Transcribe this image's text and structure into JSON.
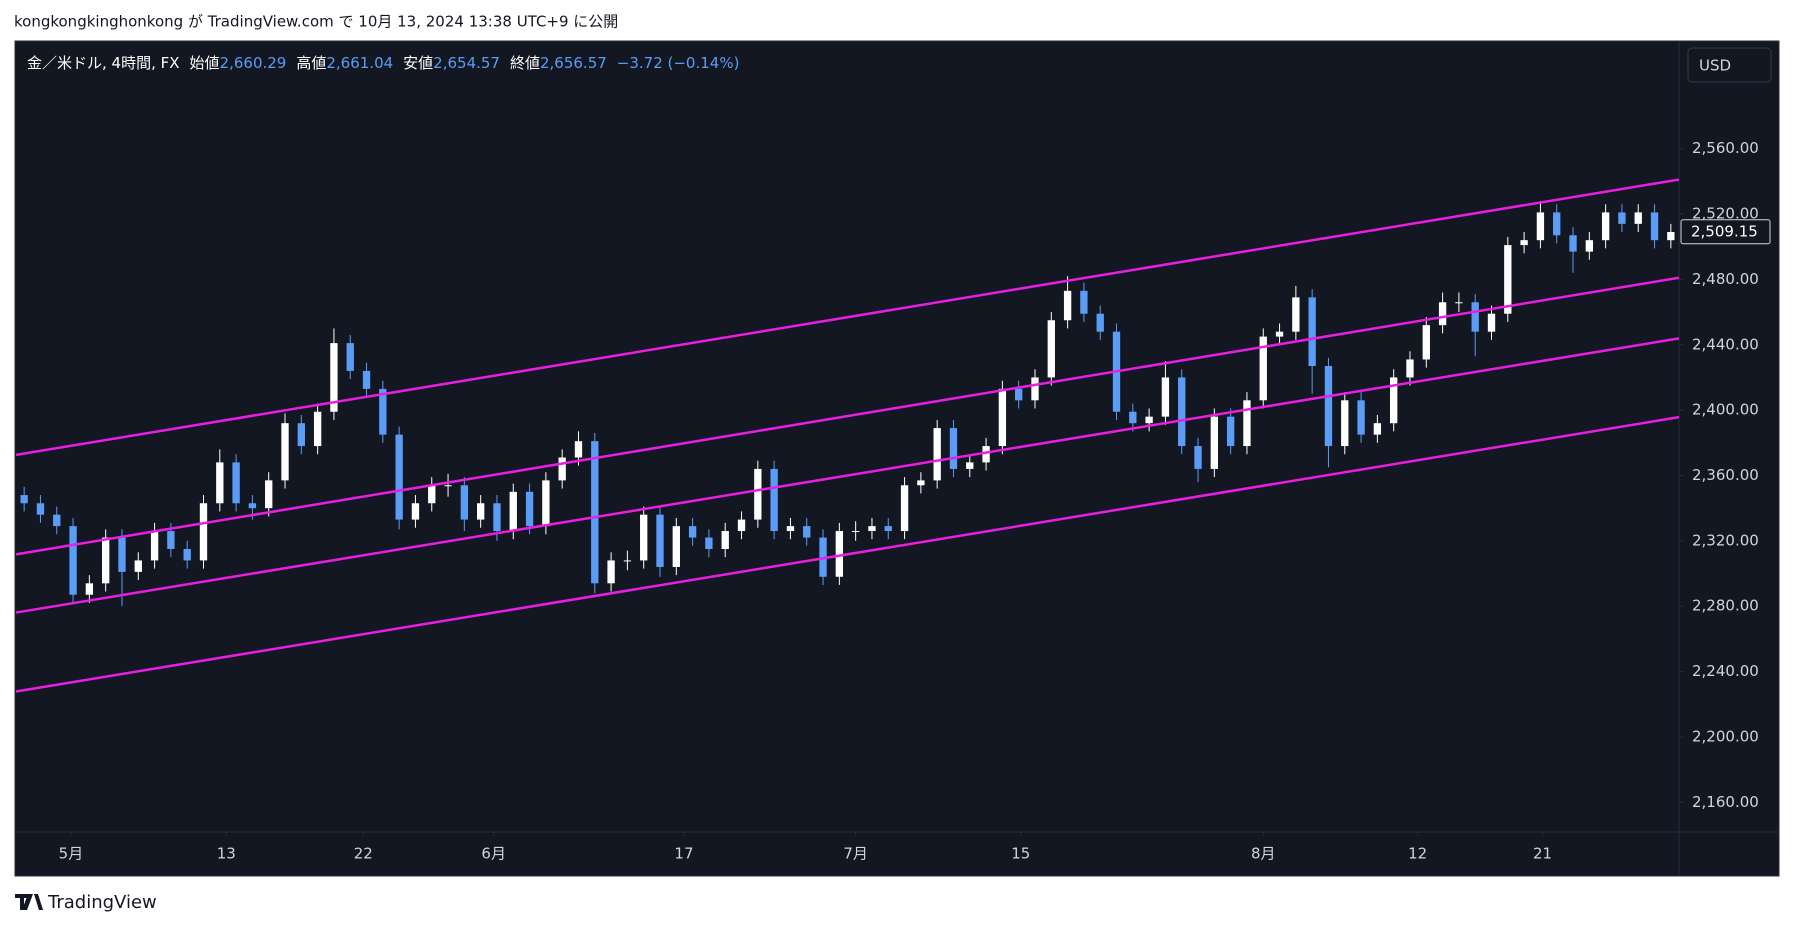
{
  "header": {
    "text": "kongkongkinghonkong が TradingView.com で 10月 13, 2024 13:38 UTC+9 に公開"
  },
  "footer": {
    "logo": "TradingView"
  },
  "chart_data": {
    "type": "candlestick",
    "legend": {
      "symbol": "金／米ドル, 4時間, FX",
      "fields": [
        {
          "label": "始値",
          "value": "2,660.29"
        },
        {
          "label": "高値",
          "value": "2,661.04"
        },
        {
          "label": "安値",
          "value": "2,654.57"
        },
        {
          "label": "終値",
          "value": "2,656.57"
        }
      ],
      "change": "−3.72 (−0.14%)"
    },
    "currency": "USD",
    "open": [
      2348,
      2343,
      2336,
      2329,
      2287,
      2294,
      2322,
      2301,
      2308,
      2326,
      2315,
      2308,
      2343,
      2368,
      2343,
      2340,
      2357,
      2392,
      2378,
      2399,
      2441,
      2424,
      2413,
      2385,
      2333,
      2343,
      2354,
      2354,
      2333,
      2343,
      2326,
      2350,
      2329,
      2357,
      2371,
      2381,
      2294,
      2308,
      2308,
      2336,
      2304,
      2329,
      2322,
      2315,
      2326,
      2333,
      2364,
      2326,
      2329,
      2322,
      2298,
      2326,
      2326,
      2329,
      2326,
      2354,
      2357,
      2389,
      2364,
      2368,
      2378,
      2413,
      2406,
      2420,
      2455,
      2473,
      2459,
      2448,
      2399,
      2392,
      2396,
      2420,
      2378,
      2364,
      2396,
      2378,
      2406,
      2445,
      2448,
      2469,
      2427,
      2378,
      2406,
      2385,
      2392,
      2420,
      2431,
      2452,
      2466,
      2466,
      2448,
      2459,
      2501,
      2504,
      2521,
      2507,
      2497,
      2504,
      2521,
      2514,
      2521,
      2504
    ],
    "high": [
      2353,
      2348,
      2341,
      2334,
      2299,
      2327,
      2327,
      2313,
      2331,
      2331,
      2320,
      2348,
      2376,
      2373,
      2348,
      2362,
      2398,
      2397,
      2404,
      2450,
      2446,
      2429,
      2418,
      2390,
      2348,
      2359,
      2361,
      2359,
      2348,
      2348,
      2355,
      2355,
      2362,
      2376,
      2387,
      2386,
      2313,
      2314,
      2341,
      2341,
      2334,
      2334,
      2327,
      2331,
      2338,
      2369,
      2369,
      2334,
      2334,
      2327,
      2331,
      2332,
      2334,
      2334,
      2359,
      2362,
      2394,
      2394,
      2373,
      2383,
      2418,
      2418,
      2425,
      2460,
      2482,
      2478,
      2464,
      2453,
      2404,
      2401,
      2430,
      2425,
      2383,
      2401,
      2401,
      2411,
      2450,
      2453,
      2476,
      2474,
      2432,
      2411,
      2411,
      2397,
      2425,
      2436,
      2457,
      2472,
      2472,
      2471,
      2464,
      2506,
      2509,
      2528,
      2526,
      2512,
      2509,
      2526,
      2526,
      2526,
      2526,
      2514
    ],
    "low": [
      2338,
      2331,
      2324,
      2282,
      2282,
      2289,
      2280,
      2296,
      2303,
      2310,
      2303,
      2303,
      2338,
      2338,
      2333,
      2335,
      2352,
      2373,
      2373,
      2394,
      2419,
      2408,
      2380,
      2327,
      2328,
      2338,
      2347,
      2326,
      2328,
      2320,
      2321,
      2324,
      2324,
      2352,
      2366,
      2288,
      2289,
      2302,
      2303,
      2298,
      2299,
      2317,
      2310,
      2310,
      2321,
      2328,
      2321,
      2321,
      2317,
      2293,
      2293,
      2320,
      2321,
      2321,
      2321,
      2349,
      2352,
      2359,
      2359,
      2363,
      2373,
      2401,
      2401,
      2415,
      2450,
      2454,
      2443,
      2394,
      2387,
      2387,
      2391,
      2373,
      2356,
      2359,
      2373,
      2373,
      2401,
      2440,
      2443,
      2410,
      2365,
      2373,
      2380,
      2380,
      2387,
      2415,
      2426,
      2447,
      2460,
      2433,
      2443,
      2454,
      2496,
      2499,
      2502,
      2484,
      2492,
      2499,
      2509,
      2509,
      2499,
      2499
    ],
    "close": [
      2343,
      2336,
      2329,
      2287,
      2294,
      2322,
      2301,
      2308,
      2326,
      2315,
      2308,
      2343,
      2368,
      2343,
      2340,
      2357,
      2392,
      2378,
      2399,
      2441,
      2424,
      2413,
      2385,
      2333,
      2343,
      2354,
      2354,
      2333,
      2343,
      2326,
      2350,
      2329,
      2357,
      2371,
      2381,
      2294,
      2308,
      2308,
      2336,
      2304,
      2329,
      2322,
      2315,
      2326,
      2333,
      2364,
      2326,
      2329,
      2322,
      2298,
      2326,
      2326,
      2329,
      2326,
      2354,
      2357,
      2389,
      2364,
      2368,
      2378,
      2413,
      2406,
      2420,
      2455,
      2473,
      2459,
      2448,
      2399,
      2392,
      2396,
      2420,
      2378,
      2364,
      2396,
      2378,
      2406,
      2445,
      2448,
      2469,
      2427,
      2378,
      2406,
      2385,
      2392,
      2420,
      2431,
      2452,
      2466,
      2466,
      2448,
      2459,
      2501,
      2504,
      2521,
      2507,
      2497,
      2504,
      2521,
      2514,
      2521,
      2504,
      2509
    ],
    "up_color": "#ffffff",
    "down_color": "#5b9cf6",
    "xlim": [
      -0.5,
      101.5
    ],
    "xticks": [
      {
        "value": 2.87,
        "label": "5月"
      },
      {
        "value": 12.4,
        "label": "13"
      },
      {
        "value": 20.8,
        "label": "22"
      },
      {
        "value": 28.8,
        "label": "6月"
      },
      {
        "value": 40.47,
        "label": "17"
      },
      {
        "value": 51,
        "label": "7月"
      },
      {
        "value": 61.13,
        "label": "15"
      },
      {
        "value": 76,
        "label": "8月"
      },
      {
        "value": 85.47,
        "label": "12"
      },
      {
        "value": 93.13,
        "label": "21"
      }
    ],
    "ylim": [
      2141.8,
      2625.9
    ],
    "yticks": [
      {
        "value": 2160,
        "label": "2,160.00"
      },
      {
        "value": 2200,
        "label": "2,200.00"
      },
      {
        "value": 2240,
        "label": "2,240.00"
      },
      {
        "value": 2280,
        "label": "2,280.00"
      },
      {
        "value": 2320,
        "label": "2,320.00"
      },
      {
        "value": 2360,
        "label": "2,360.00"
      },
      {
        "value": 2400,
        "label": "2,400.00"
      },
      {
        "value": 2440,
        "label": "2,440.00"
      },
      {
        "value": 2480,
        "label": "2,480.00"
      },
      {
        "value": 2520,
        "label": "2,520.00"
      },
      {
        "value": 2560,
        "label": "2,560.00"
      }
    ],
    "last_price": {
      "value": 2509.15,
      "label": "2,509.15"
    },
    "channel_lines": [
      {
        "values": [
          2372.6,
          2541.1
        ]
      },
      {
        "values": [
          2311.7,
          2481.0
        ]
      },
      {
        "values": [
          2276.1,
          2443.9
        ]
      },
      {
        "values": [
          2227.8,
          2395.7
        ]
      }
    ],
    "channel_color": "#e91ee3"
  }
}
